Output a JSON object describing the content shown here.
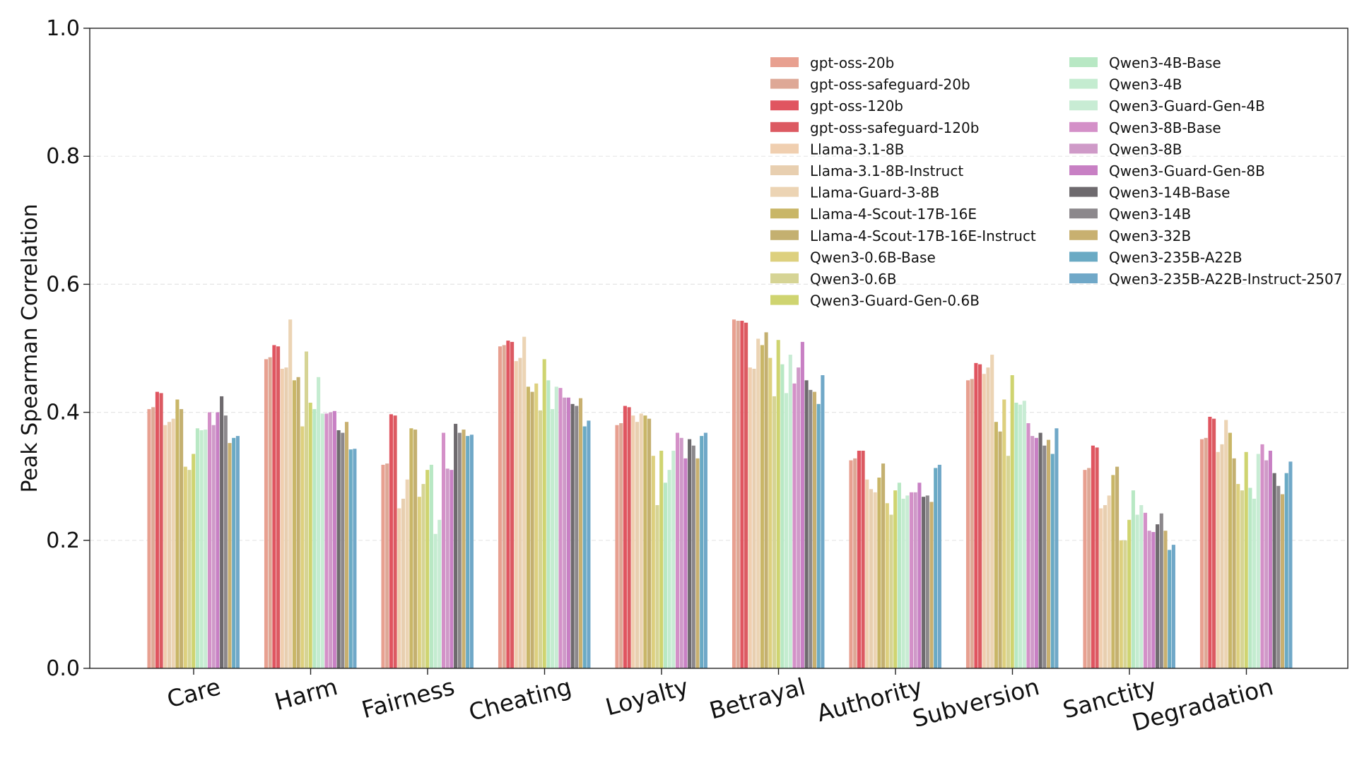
{
  "chart_data": {
    "type": "bar",
    "title": "",
    "xlabel": "",
    "ylabel": "Peak Spearman Correlation",
    "ylim": [
      0,
      1.0
    ],
    "yticks": [
      "0.0",
      "0.2",
      "0.4",
      "0.6",
      "0.8",
      "1.0"
    ],
    "ytick_values": [
      0,
      0.2,
      0.4,
      0.6,
      0.8,
      1.0
    ],
    "grid": true,
    "legend_position": "top-right",
    "categories": [
      "Care",
      "Harm",
      "Fairness",
      "Cheating",
      "Loyalty",
      "Betrayal",
      "Authority",
      "Subversion",
      "Sanctity",
      "Degradation"
    ],
    "series": [
      {
        "name": "gpt-oss-20b",
        "color": "#e8a090",
        "values": [
          0.405,
          0.483,
          0.318,
          0.503,
          0.38,
          0.545,
          0.325,
          0.45,
          0.31,
          0.358
        ]
      },
      {
        "name": "gpt-oss-safeguard-20b",
        "color": "#dea896",
        "values": [
          0.408,
          0.486,
          0.32,
          0.505,
          0.383,
          0.543,
          0.328,
          0.452,
          0.313,
          0.36
        ]
      },
      {
        "name": "gpt-oss-120b",
        "color": "#e05560",
        "values": [
          0.432,
          0.505,
          0.397,
          0.512,
          0.41,
          0.543,
          0.34,
          0.477,
          0.348,
          0.393
        ]
      },
      {
        "name": "gpt-oss-safeguard-120b",
        "color": "#dc5a62",
        "values": [
          0.43,
          0.503,
          0.395,
          0.51,
          0.408,
          0.54,
          0.34,
          0.475,
          0.345,
          0.39
        ]
      },
      {
        "name": "Llama-3.1-8B",
        "color": "#f0cfb0",
        "values": [
          0.38,
          0.468,
          0.25,
          0.48,
          0.395,
          0.47,
          0.295,
          0.46,
          0.25,
          0.338
        ]
      },
      {
        "name": "Llama-3.1-8B-Instruct",
        "color": "#e8cfb0",
        "values": [
          0.385,
          0.47,
          0.265,
          0.485,
          0.385,
          0.468,
          0.28,
          0.47,
          0.255,
          0.35
        ]
      },
      {
        "name": "Llama-Guard-3-8B",
        "color": "#ecd4b4",
        "values": [
          0.39,
          0.545,
          0.295,
          0.518,
          0.398,
          0.515,
          0.275,
          0.49,
          0.27,
          0.388
        ]
      },
      {
        "name": "Llama-4-Scout-17B-16E",
        "color": "#c9b667",
        "values": [
          0.42,
          0.45,
          0.375,
          0.44,
          0.395,
          0.505,
          0.298,
          0.385,
          0.302,
          0.368
        ]
      },
      {
        "name": "Llama-4-Scout-17B-16E-Instruct",
        "color": "#c4b070",
        "values": [
          0.405,
          0.455,
          0.373,
          0.432,
          0.39,
          0.525,
          0.32,
          0.37,
          0.315,
          0.328
        ]
      },
      {
        "name": "Qwen3-0.6B-Base",
        "color": "#ddd07e",
        "values": [
          0.315,
          0.378,
          0.268,
          0.445,
          0.332,
          0.485,
          0.258,
          0.42,
          0.2,
          0.288
        ]
      },
      {
        "name": "Qwen3-0.6B",
        "color": "#d6d495",
        "values": [
          0.31,
          0.495,
          0.288,
          0.403,
          0.255,
          0.425,
          0.24,
          0.332,
          0.2,
          0.278
        ]
      },
      {
        "name": "Qwen3-Guard-Gen-0.6B",
        "color": "#cfd470",
        "values": [
          0.335,
          0.415,
          0.31,
          0.483,
          0.34,
          0.513,
          0.278,
          0.458,
          0.232,
          0.338
        ]
      },
      {
        "name": "Qwen3-4B-Base",
        "color": "#b8e8c4",
        "values": [
          0.375,
          0.405,
          0.318,
          0.45,
          0.29,
          0.475,
          0.29,
          0.415,
          0.278,
          0.282
        ]
      },
      {
        "name": "Qwen3-4B",
        "color": "#c4ecd0",
        "values": [
          0.372,
          0.455,
          0.21,
          0.405,
          0.31,
          0.43,
          0.265,
          0.412,
          0.24,
          0.265
        ]
      },
      {
        "name": "Qwen3-Guard-Gen-4B",
        "color": "#c8ecd4",
        "values": [
          0.373,
          0.398,
          0.232,
          0.44,
          0.34,
          0.49,
          0.27,
          0.418,
          0.255,
          0.335
        ]
      },
      {
        "name": "Qwen3-8B-Base",
        "color": "#d490c8",
        "values": [
          0.4,
          0.398,
          0.368,
          0.438,
          0.368,
          0.445,
          0.275,
          0.383,
          0.243,
          0.35
        ]
      },
      {
        "name": "Qwen3-8B",
        "color": "#cf9ac8",
        "values": [
          0.38,
          0.4,
          0.312,
          0.423,
          0.36,
          0.47,
          0.275,
          0.363,
          0.215,
          0.325
        ]
      },
      {
        "name": "Qwen3-Guard-Gen-8B",
        "color": "#c880c4",
        "values": [
          0.4,
          0.402,
          0.31,
          0.423,
          0.328,
          0.51,
          0.29,
          0.36,
          0.213,
          0.34
        ]
      },
      {
        "name": "Qwen3-14B-Base",
        "color": "#6e6a6e",
        "values": [
          0.425,
          0.372,
          0.382,
          0.413,
          0.358,
          0.45,
          0.268,
          0.368,
          0.225,
          0.305
        ]
      },
      {
        "name": "Qwen3-14B",
        "color": "#8c888c",
        "values": [
          0.395,
          0.368,
          0.368,
          0.41,
          0.348,
          0.435,
          0.27,
          0.348,
          0.242,
          0.285
        ]
      },
      {
        "name": "Qwen3-32B",
        "color": "#c8b070",
        "values": [
          0.352,
          0.385,
          0.373,
          0.422,
          0.328,
          0.432,
          0.26,
          0.357,
          0.215,
          0.272
        ]
      },
      {
        "name": "Qwen3-235B-A22B",
        "color": "#6aaac4",
        "values": [
          0.36,
          0.342,
          0.363,
          0.378,
          0.363,
          0.413,
          0.313,
          0.335,
          0.185,
          0.305
        ]
      },
      {
        "name": "Qwen3-235B-A22B-Instruct-2507",
        "color": "#70a8c8",
        "values": [
          0.363,
          0.343,
          0.365,
          0.387,
          0.368,
          0.458,
          0.318,
          0.375,
          0.193,
          0.323
        ]
      }
    ]
  }
}
